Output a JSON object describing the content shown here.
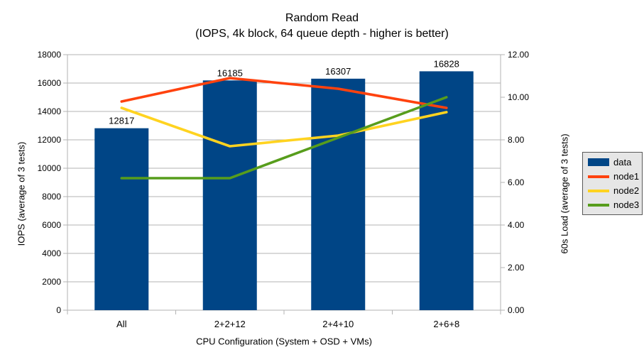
{
  "chart_data": {
    "type": "bar+line combo",
    "title": "Random Read",
    "subtitle": "(IOPS, 4k block, 64 queue depth - higher is better)",
    "xlabel": "CPU Configuration (System + OSD + VMs)",
    "ylabel_left": "IOPS (average of 3 tests)",
    "ylabel_right": "60s Load (average of 3 tests)",
    "categories": [
      "All",
      "2+2+12",
      "2+4+10",
      "2+6+8"
    ],
    "series": [
      {
        "name": "data",
        "type": "bar",
        "axis": "left",
        "color": "#004586",
        "values": [
          12817,
          16185,
          16307,
          16828
        ],
        "value_labels_shown": true
      },
      {
        "name": "node1",
        "type": "line",
        "axis": "right",
        "color": "#FF420E",
        "values": [
          9.8,
          10.9,
          10.4,
          9.5
        ]
      },
      {
        "name": "node2",
        "type": "line",
        "axis": "right",
        "color": "#FFD320",
        "values": [
          9.5,
          7.7,
          8.2,
          9.3
        ]
      },
      {
        "name": "node3",
        "type": "line",
        "axis": "right",
        "color": "#579D1C",
        "values": [
          6.2,
          6.2,
          8.1,
          10.0
        ]
      }
    ],
    "ylim_left": [
      0,
      18000
    ],
    "ytick_step_left": 2000,
    "ylim_right": [
      0,
      12
    ],
    "ytick_step_right": 2,
    "right_tick_decimals": 2,
    "grid": "horizontal gridlines on, gray",
    "legend_position": "right"
  },
  "colors": {
    "grid": "#b3b3b3",
    "axis": "#b3b3b3",
    "text": "#000000",
    "background": "#ffffff",
    "legend_background": "#e6e6e6",
    "legend_border": "#595959"
  }
}
